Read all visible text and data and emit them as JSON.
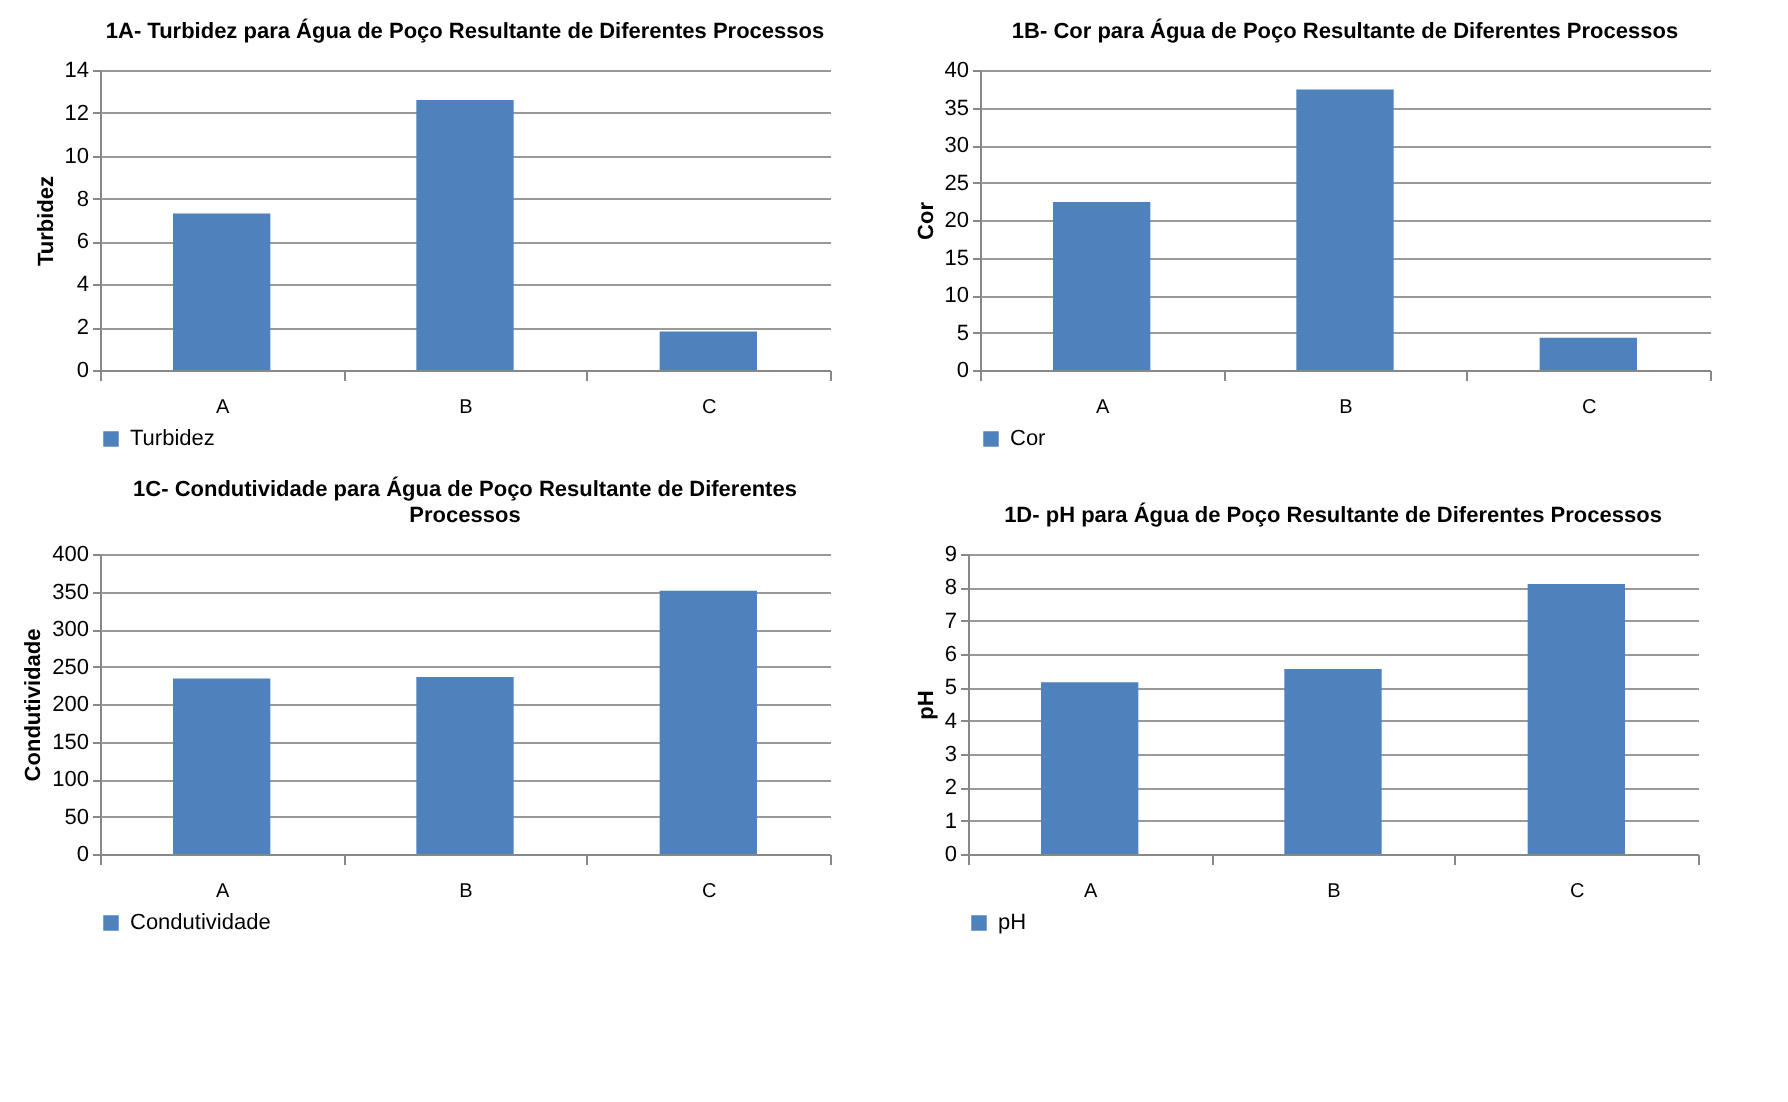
{
  "chart_data": [
    {
      "type": "bar",
      "title": "1A- Turbidez para Água de Poço Resultante de Diferentes Processos",
      "ylabel": "Turbidez",
      "categories": [
        "A",
        "B",
        "C"
      ],
      "series": [
        {
          "name": "Turbidez",
          "color": "#4f81bd",
          "values": [
            7.3,
            12.6,
            1.8
          ]
        }
      ],
      "ylim": [
        0,
        14
      ],
      "yticks": [
        0,
        2,
        4,
        6,
        8,
        10,
        12,
        14
      ],
      "grid": "y",
      "legend": "bottom"
    },
    {
      "type": "bar",
      "title": "1B- Cor para Água de Poço Resultante de Diferentes Processos",
      "ylabel": "Cor",
      "categories": [
        "A",
        "B",
        "C"
      ],
      "series": [
        {
          "name": "Cor",
          "color": "#4f81bd",
          "values": [
            22.4,
            37.4,
            4.3
          ]
        }
      ],
      "ylim": [
        0,
        40
      ],
      "yticks": [
        0,
        5,
        10,
        15,
        20,
        25,
        30,
        35,
        40
      ],
      "grid": "y",
      "legend": "bottom"
    },
    {
      "type": "bar",
      "title": "1C- Condutividade  para Água de Poço Resultante de Diferentes Processos",
      "ylabel": "Condutividade",
      "categories": [
        "A",
        "B",
        "C"
      ],
      "series": [
        {
          "name": "Condutividade",
          "color": "#4f81bd",
          "values": [
            234,
            236,
            351
          ]
        }
      ],
      "ylim": [
        0,
        400
      ],
      "yticks": [
        0,
        50,
        100,
        150,
        200,
        250,
        300,
        350,
        400
      ],
      "grid": "y",
      "legend": "bottom"
    },
    {
      "type": "bar",
      "title": "1D- pH para Água de Poço Resultante de Diferentes Processos",
      "ylabel": "pH",
      "categories": [
        "A",
        "B",
        "C"
      ],
      "series": [
        {
          "name": "pH",
          "color": "#4f81bd",
          "values": [
            5.15,
            5.55,
            8.1
          ]
        }
      ],
      "ylim": [
        0,
        9
      ],
      "yticks": [
        0,
        1,
        2,
        3,
        4,
        5,
        6,
        7,
        8,
        9
      ],
      "grid": "y",
      "legend": "bottom"
    }
  ]
}
